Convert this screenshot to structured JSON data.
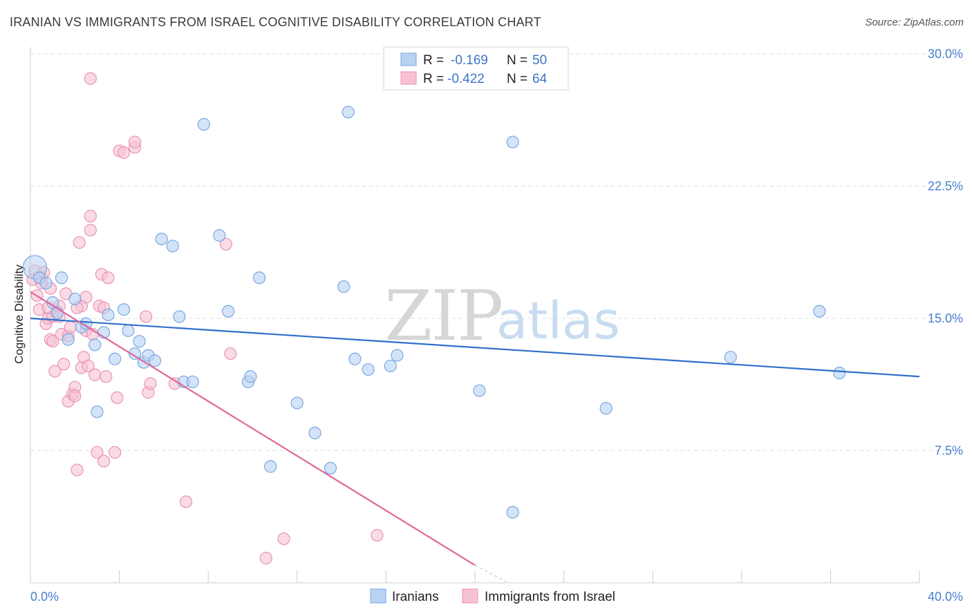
{
  "title": "IRANIAN VS IMMIGRANTS FROM ISRAEL COGNITIVE DISABILITY CORRELATION CHART",
  "source": "Source: ZipAtlas.com",
  "watermark": {
    "zip": "ZIP",
    "atlas": "atlas"
  },
  "colors": {
    "iranians_fill": "#b8d2f3",
    "iranians_stroke": "#7aa6df",
    "iranians_line": "#2f6fcc",
    "israel_fill": "#f7c1d3",
    "israel_stroke": "#e993b2",
    "israel_line": "#e0669a",
    "grid": "#dddddd",
    "tick_label": "#4a7fcf"
  },
  "legend_top": {
    "rows": [
      {
        "r_label": "R = ",
        "r_value": "-0.169",
        "n_label": "N = ",
        "n_value": "50"
      },
      {
        "r_label": "R = ",
        "r_value": "-0.422",
        "n_label": "N = ",
        "n_value": "64"
      }
    ]
  },
  "chart_data": {
    "type": "scatter",
    "title": "IRANIAN VS IMMIGRANTS FROM ISRAEL COGNITIVE DISABILITY CORRELATION CHART",
    "xlabel": "",
    "ylabel": "Cognitive Disability",
    "xlim": [
      0,
      40
    ],
    "ylim": [
      0,
      30
    ],
    "x_tick_labels": [
      {
        "value": 0,
        "label": "0.0%"
      },
      {
        "value": 40,
        "label": "40.0%"
      }
    ],
    "y_tick_labels": [
      {
        "value": 7.5,
        "label": "7.5%"
      },
      {
        "value": 15,
        "label": "15.0%"
      },
      {
        "value": 22.5,
        "label": "22.5%"
      },
      {
        "value": 30,
        "label": "30.0%"
      }
    ],
    "grid": true,
    "legend_position": "top-center",
    "series": [
      {
        "name": "Iranians",
        "r": -0.169,
        "n": 50,
        "trend": {
          "x": [
            0,
            40
          ],
          "y": [
            15.0,
            11.7
          ]
        },
        "points": [
          [
            0.2,
            17.9
          ],
          [
            0.4,
            17.3
          ],
          [
            0.7,
            17.0
          ],
          [
            1.0,
            15.9
          ],
          [
            1.2,
            15.3
          ],
          [
            1.4,
            17.3
          ],
          [
            1.7,
            13.8
          ],
          [
            2.0,
            16.1
          ],
          [
            2.3,
            14.5
          ],
          [
            2.5,
            14.7
          ],
          [
            2.9,
            13.5
          ],
          [
            3.0,
            9.7
          ],
          [
            3.3,
            14.2
          ],
          [
            3.5,
            15.2
          ],
          [
            3.8,
            12.7
          ],
          [
            4.2,
            15.5
          ],
          [
            4.4,
            14.3
          ],
          [
            4.7,
            13.0
          ],
          [
            4.9,
            13.7
          ],
          [
            5.1,
            12.5
          ],
          [
            5.3,
            12.9
          ],
          [
            5.6,
            12.6
          ],
          [
            5.9,
            19.5
          ],
          [
            6.4,
            19.1
          ],
          [
            6.7,
            15.1
          ],
          [
            6.9,
            11.4
          ],
          [
            7.3,
            11.4
          ],
          [
            7.8,
            26.0
          ],
          [
            8.5,
            19.7
          ],
          [
            8.9,
            15.4
          ],
          [
            9.8,
            11.4
          ],
          [
            9.9,
            11.7
          ],
          [
            10.3,
            17.3
          ],
          [
            10.8,
            6.6
          ],
          [
            12.0,
            10.2
          ],
          [
            12.8,
            8.5
          ],
          [
            13.5,
            6.5
          ],
          [
            14.1,
            16.8
          ],
          [
            14.3,
            26.7
          ],
          [
            14.6,
            12.7
          ],
          [
            15.2,
            12.1
          ],
          [
            16.2,
            12.3
          ],
          [
            16.5,
            12.9
          ],
          [
            20.2,
            10.9
          ],
          [
            21.7,
            4.0
          ],
          [
            21.7,
            25.0
          ],
          [
            25.9,
            9.9
          ],
          [
            31.5,
            12.8
          ],
          [
            35.5,
            15.4
          ],
          [
            36.4,
            11.9
          ]
        ]
      },
      {
        "name": "Immigrants from Israel",
        "r": -0.422,
        "n": 64,
        "trend": {
          "x": [
            0,
            20
          ],
          "y": [
            16.5,
            1.0
          ]
        },
        "trend_dashed": {
          "x": [
            20,
            21.5
          ],
          "y": [
            1.0,
            0.0
          ]
        },
        "points": [
          [
            0.1,
            17.2
          ],
          [
            0.2,
            17.7
          ],
          [
            0.3,
            16.3
          ],
          [
            0.4,
            15.5
          ],
          [
            0.5,
            17.3
          ],
          [
            0.6,
            17.6
          ],
          [
            0.7,
            14.7
          ],
          [
            0.8,
            15.0
          ],
          [
            0.9,
            16.7
          ],
          [
            0.9,
            13.8
          ],
          [
            1.0,
            15.1
          ],
          [
            1.1,
            12.0
          ],
          [
            1.2,
            15.4
          ],
          [
            1.3,
            15.7
          ],
          [
            1.4,
            14.1
          ],
          [
            1.5,
            12.4
          ],
          [
            1.6,
            16.4
          ],
          [
            1.7,
            14.0
          ],
          [
            1.7,
            10.3
          ],
          [
            1.8,
            14.5
          ],
          [
            1.9,
            10.7
          ],
          [
            2.0,
            11.1
          ],
          [
            2.0,
            10.6
          ],
          [
            2.1,
            6.4
          ],
          [
            2.2,
            19.3
          ],
          [
            2.3,
            15.7
          ],
          [
            2.3,
            12.2
          ],
          [
            2.4,
            12.8
          ],
          [
            2.5,
            16.2
          ],
          [
            2.5,
            14.3
          ],
          [
            2.6,
            12.3
          ],
          [
            2.7,
            20.8
          ],
          [
            2.7,
            20.0
          ],
          [
            2.8,
            14.1
          ],
          [
            2.9,
            11.8
          ],
          [
            3.0,
            7.4
          ],
          [
            3.1,
            15.7
          ],
          [
            3.2,
            17.5
          ],
          [
            3.3,
            6.9
          ],
          [
            3.4,
            11.7
          ],
          [
            3.5,
            17.3
          ],
          [
            3.8,
            7.4
          ],
          [
            3.9,
            10.5
          ],
          [
            4.0,
            24.5
          ],
          [
            4.2,
            24.4
          ],
          [
            4.7,
            24.7
          ],
          [
            4.7,
            25.0
          ],
          [
            5.2,
            15.1
          ],
          [
            5.3,
            10.8
          ],
          [
            5.4,
            11.3
          ],
          [
            6.5,
            11.3
          ],
          [
            7.0,
            4.6
          ],
          [
            8.8,
            19.2
          ],
          [
            9.0,
            13.0
          ],
          [
            10.6,
            1.4
          ],
          [
            11.4,
            2.5
          ],
          [
            15.6,
            2.7
          ],
          [
            2.7,
            28.6
          ],
          [
            0.5,
            17.0
          ],
          [
            0.8,
            15.6
          ],
          [
            1.3,
            15.1
          ],
          [
            1.0,
            13.7
          ],
          [
            2.1,
            15.6
          ],
          [
            3.3,
            15.6
          ]
        ]
      }
    ]
  },
  "legend_bottom": {
    "items": [
      "Iranians",
      "Immigrants from Israel"
    ]
  }
}
